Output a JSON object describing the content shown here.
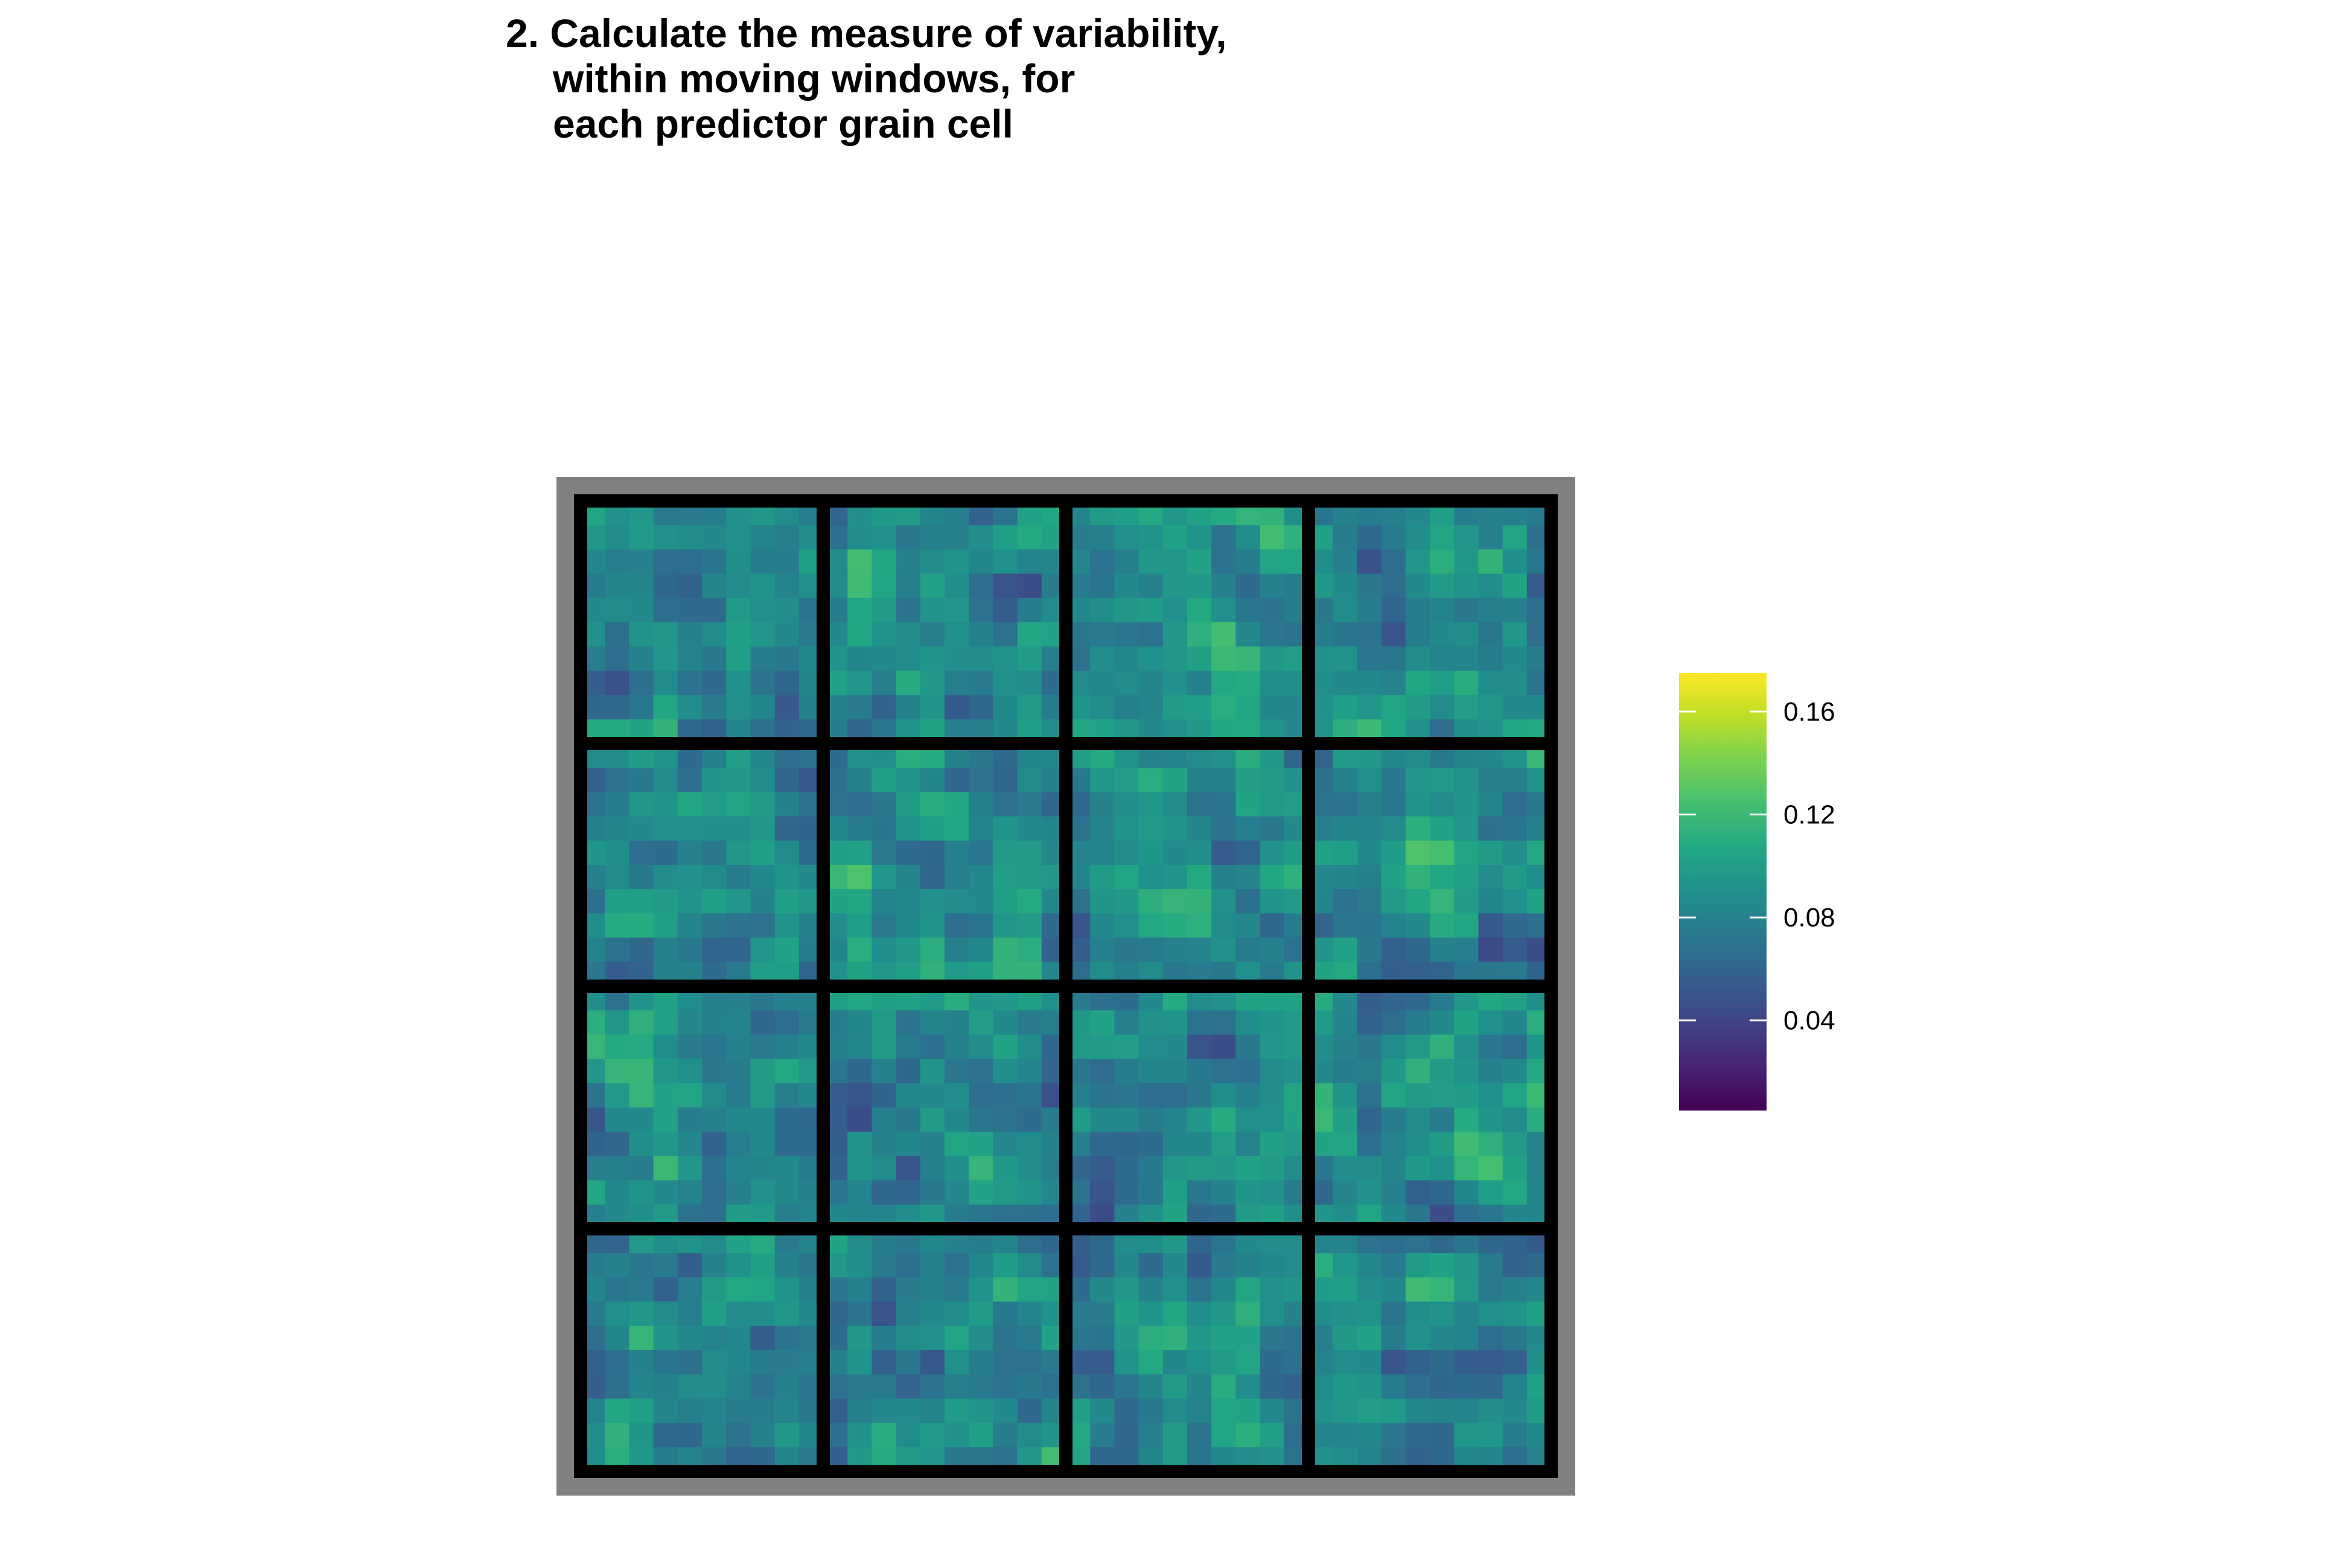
{
  "title_lines": [
    "2. Calculate the measure of variability,",
    "within moving windows, for",
    "each predictor grain cell"
  ],
  "chart_data": {
    "type": "heatmap",
    "title": "2. Calculate the measure of variability, within moving windows, for each predictor grain cell",
    "panels": {
      "rows": 4,
      "cols": 4
    },
    "cells_per_panel": 10,
    "grid_size": [
      40,
      40
    ],
    "value_range": [
      0.005,
      0.175
    ],
    "values_seed": 20240611,
    "values": [],
    "legend": {
      "position": "right",
      "colormap": "viridis",
      "min": 0.005,
      "max": 0.175,
      "ticks": [
        0.04,
        0.08,
        0.12,
        0.16
      ],
      "tick_labels": [
        "0.04",
        "0.08",
        "0.12",
        "0.16"
      ]
    },
    "colors": {
      "background_frame": "#808080",
      "panel_lines": "#000000"
    }
  }
}
